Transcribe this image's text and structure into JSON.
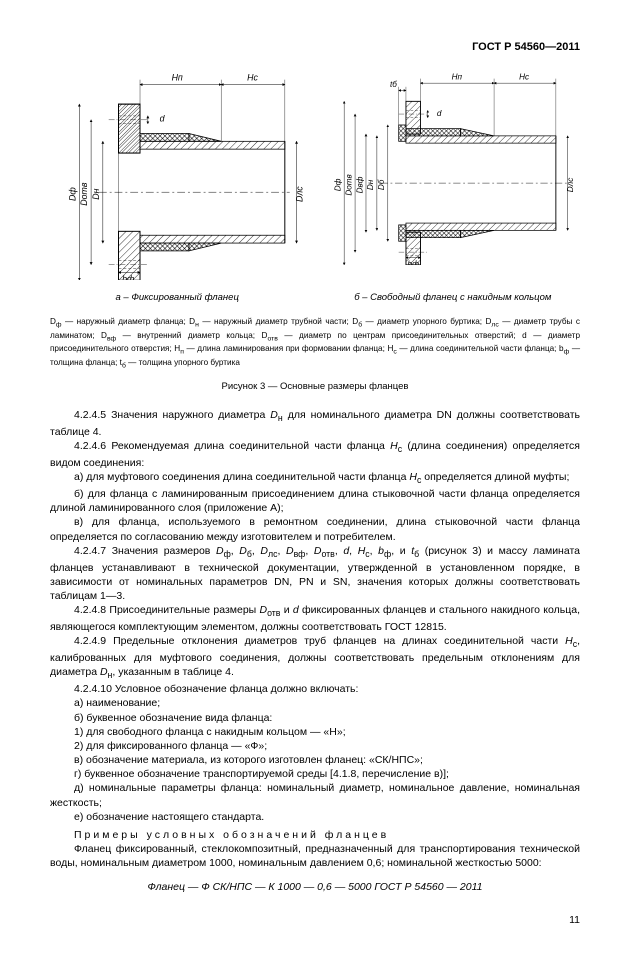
{
  "header": "ГОСТ Р 54560—2011",
  "captions": {
    "a": "а – Фиксированный фланец",
    "b": "б – Свободный фланец с накидным кольцом"
  },
  "legend": "D<sub>ф</sub> — наружный диаметр фланца; D<sub>н</sub> — наружный диаметр трубной части; D<sub>б</sub> — диаметр упорного буртика; D<sub>лс</sub> — диаметр трубы с ламинатом; D<sub>вф</sub> — внутренний диаметр кольца; D<sub>отв</sub> — диаметр по центрам присоединительных отверстий; d — диаметр присоединительного отверстия; H<sub>п</sub> — длина ламинирования при формовании фланца; H<sub>с</sub> — длина соединительной части фланца; b<sub>ф</sub> — толщина фланца; t<sub>б</sub> — толщина упорного буртика",
  "fig_title": "Рисунок 3 — Основные размеры фланцев",
  "paragraphs": [
    "4.2.4.5 Значения наружного диаметра <i>D</i><sub>н</sub> для номинального диаметра DN должны соответствовать таблице 4.",
    "4.2.4.6 Рекомендуемая длина соединительной части фланца <i>H</i><sub>с</sub> (длина соединения) определяется видом соединения:",
    "а) для муфтового соединения длина соединительной части фланца <i>H</i><sub>с</sub> определяется длиной муфты;",
    "б) для фланца с ламинированным присоединением длина стыковочной части фланца определяется длиной ламинированного слоя (приложение А);",
    "в) для фланца, используемого в ремонтном соединении, длина стыковочной части фланца определяется по согласованию между изготовителем и потребителем.",
    "4.2.4.7 Значения размеров <i>D</i><sub>ф</sub>, <i>D</i><sub>б</sub>, <i>D</i><sub>лс</sub>, <i>D</i><sub>вф</sub>, <i>D</i><sub>отв</sub>, <i>d</i>, <i>H</i><sub>с</sub>, <i>b</i><sub>ф</sub>, и <i>t</i><sub>б</sub> (рисунок 3) и массу ламината фланцев устанавливают в технической документации, утвержденной в установленном порядке, в зависимости от номинальных параметров DN, PN и SN, значения которых должны соответствовать таблицам 1—3.",
    "4.2.4.8 Присоединительные размеры <i>D</i><sub>отв</sub> и <i>d</i> фиксированных фланцев и стального накидного кольца, являющегося комплектующим элементом, должны соответствовать ГОСТ 12815.",
    "4.2.4.9 Предельные отклонения диаметров труб фланцев на длинах соединительной части <i>H</i><sub>с</sub>, калиброванных для муфтового соединения, должны соответствовать предельным отклонениям для диаметра <i>D</i><sub>н</sub>, указанным в таблице 4.",
    "4.2.4.10 Условное обозначение фланца должно включать:",
    "а) наименование;",
    "б) буквенное обозначение вида фланца:",
    "1) для свободного фланца с накидным кольцом — «Н»;",
    "2) для фиксированного фланца — «Ф»;",
    "в) обозначение материала, из которого изготовлен фланец: «СК/НПС»;",
    "г) буквенное обозначение транспортируемой среды [4.1.8, перечисление в)];",
    "д) номинальные параметры фланца: номинальный диаметр, номинальное давление, номинальная жесткость;",
    "е) обозначение настоящего стандарта."
  ],
  "example_title": "Примеры условных обозначений фланцев",
  "example_text": "Фланец фиксированный, стеклокомпозитный, предназначенный для транспортирования технической воды, номинальным диаметром 1000, номинальным давлением 0,6; номинальной жесткостью 5000:",
  "example_line": "Фланец — Ф СК/НПС — К 1000 — 0,6 — 5000 ГОСТ Р 54560 — 2011",
  "page_number": "11",
  "diagram": {
    "stroke": "#000000",
    "hatch": "#000000",
    "bg": "#ffffff",
    "labels_a": {
      "Hn": "H<tspan baseline-shift=\"sub\" font-size=\"7\">п</tspan>",
      "Hc": "H<tspan baseline-shift=\"sub\" font-size=\"7\">с</tspan>",
      "Df": "D<tspan baseline-shift=\"sub\" font-size=\"7\">ф</tspan>",
      "Dotv": "D<tspan baseline-shift=\"sub\" font-size=\"7\">отв</tspan>",
      "Dn": "D<tspan baseline-shift=\"sub\" font-size=\"7\">н</tspan>",
      "Dlc": "D<tspan baseline-shift=\"sub\" font-size=\"7\">лс</tspan>",
      "d": "d",
      "bf": "b<tspan baseline-shift=\"sub\" font-size=\"7\">ф</tspan>"
    },
    "labels_b": {
      "tb": "t<tspan baseline-shift=\"sub\" font-size=\"7\">б</tspan>",
      "Hn": "H<tspan baseline-shift=\"sub\" font-size=\"7\">п</tspan>",
      "Hc": "H<tspan baseline-shift=\"sub\" font-size=\"7\">с</tspan>",
      "Df": "D<tspan baseline-shift=\"sub\" font-size=\"7\">ф</tspan>",
      "Dotv": "D<tspan baseline-shift=\"sub\" font-size=\"7\">отв</tspan>",
      "Dvf": "D<tspan baseline-shift=\"sub\" font-size=\"7\">вф</tspan>",
      "Dn": "D<tspan baseline-shift=\"sub\" font-size=\"7\">н</tspan>",
      "Db": "D<tspan baseline-shift=\"sub\" font-size=\"7\">б</tspan>",
      "Dlc": "D<tspan baseline-shift=\"sub\" font-size=\"7\">лс</tspan>",
      "d": "d",
      "bf": "b<tspan baseline-shift=\"sub\" font-size=\"7\">ф</tspan>"
    }
  }
}
